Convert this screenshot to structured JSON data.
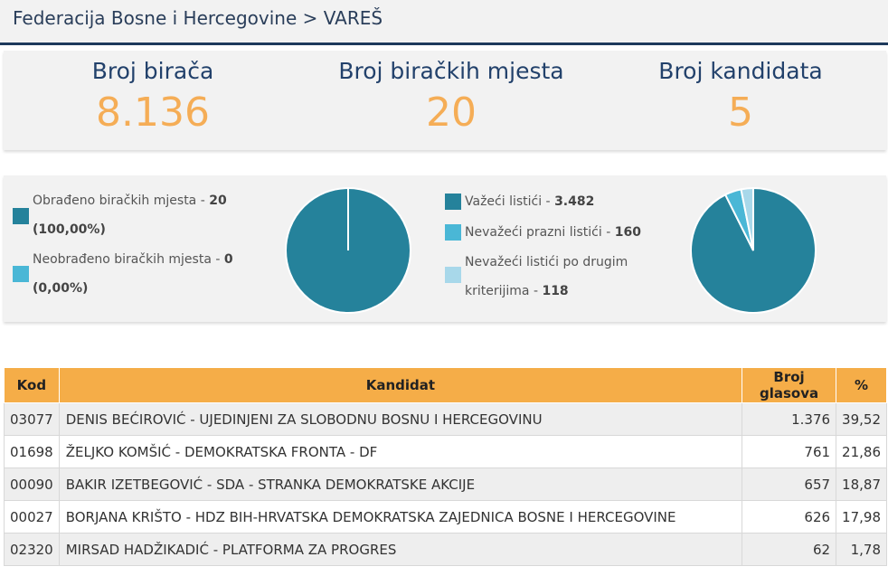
{
  "breadcrumb": "Federacija Bosne i Hercegovine > VAREŠ",
  "stats": [
    {
      "label": "Broj birača",
      "value": "8.136"
    },
    {
      "label": "Broj biračkih mjesta",
      "value": "20"
    },
    {
      "label": "Broj kandidata",
      "value": "5"
    }
  ],
  "colors": {
    "primary": "#25829b",
    "secondary": "#4ab7d6",
    "tertiary": "#a8d8ea",
    "accent": "#f5ad48",
    "navy": "#22416b"
  },
  "processing": {
    "items": [
      {
        "text": "Obrađeno biračkih mjesta - ",
        "value": "20",
        "percent": "(100,00%)",
        "color": "#25829b"
      },
      {
        "text": "Neobrađeno biračkih mjesta - ",
        "value": "0",
        "percent": "(0,00%)",
        "color": "#4ab7d6"
      }
    ]
  },
  "ballots": {
    "items": [
      {
        "text": "Važeći listići - ",
        "value": "3.482",
        "color": "#25829b"
      },
      {
        "text": "Nevažeći prazni listići - ",
        "value": "160",
        "color": "#4ab7d6"
      },
      {
        "text": "Nevažeći listići po drugim",
        "text2": "kriterijima - ",
        "value": "118",
        "color": "#a8d8ea"
      }
    ]
  },
  "chart_data": [
    {
      "type": "pie",
      "labels": [
        "Obrađeno biračkih mjesta",
        "Neobrađeno biračkih mjesta"
      ],
      "values": [
        20,
        0
      ]
    },
    {
      "type": "pie",
      "labels": [
        "Važeći listići",
        "Nevažeći prazni listići",
        "Nevažeći listići po drugim kriterijima"
      ],
      "values": [
        3482,
        160,
        118
      ]
    }
  ],
  "table": {
    "headers": [
      "Kod",
      "Kandidat",
      "Broj glasova",
      "%"
    ],
    "rows": [
      [
        "03077",
        "DENIS BEĆIROVIĆ - UJEDINJENI ZA SLOBODNU BOSNU I HERCEGOVINU",
        "1.376",
        "39,52"
      ],
      [
        "01698",
        "ŽELJKO KOMŠIĆ - DEMOKRATSKA FRONTA - DF",
        "761",
        "21,86"
      ],
      [
        "00090",
        "BAKIR IZETBEGOVIĆ - SDA - STRANKA DEMOKRATSKE AKCIJE",
        "657",
        "18,87"
      ],
      [
        "00027",
        "BORJANA KRIŠTO - HDZ BIH-HRVATSKA DEMOKRATSKA ZAJEDNICA BOSNE I HERCEGOVINE",
        "626",
        "17,98"
      ],
      [
        "02320",
        "MIRSAD HADŽIKADIĆ - PLATFORMA ZA PROGRES",
        "62",
        "1,78"
      ]
    ]
  }
}
